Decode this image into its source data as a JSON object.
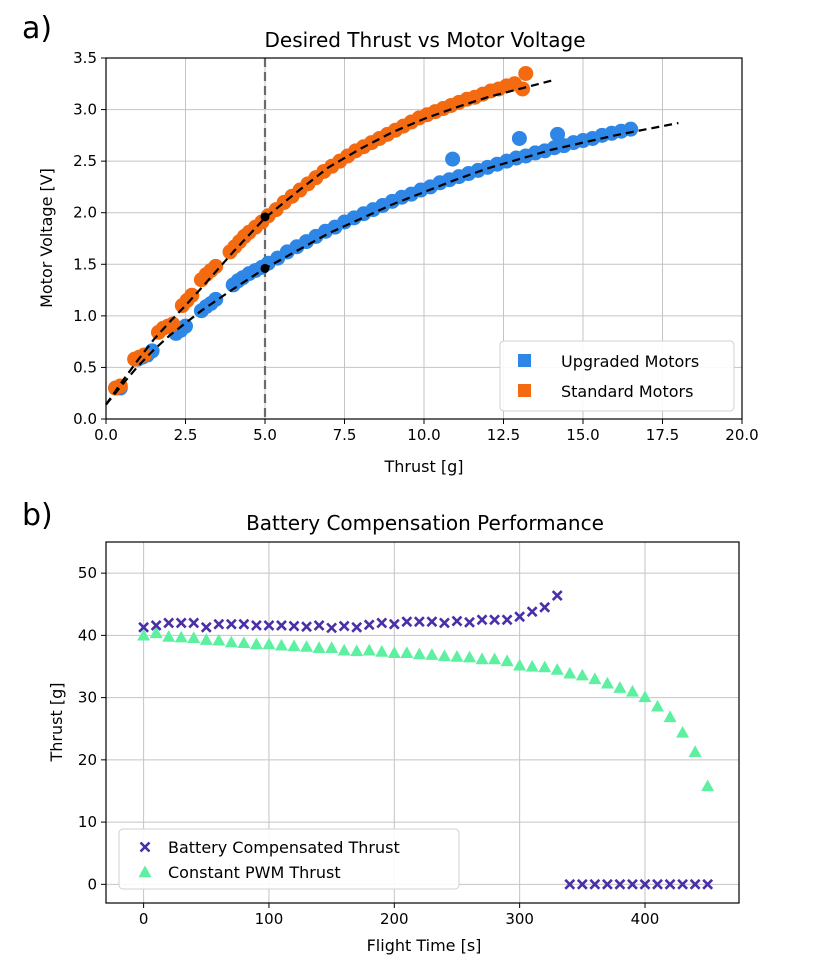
{
  "chart_data": [
    {
      "type": "scatter",
      "panel_label": "a)",
      "title": "Desired Thrust vs Motor Voltage",
      "xlabel": "Thrust [g]",
      "ylabel": "Motor Voltage [V]",
      "xlim": [
        0,
        20
      ],
      "ylim": [
        0,
        3.5
      ],
      "xticks": [
        0,
        2.5,
        5,
        7.5,
        10,
        12.5,
        15,
        17.5,
        20
      ],
      "xtick_labels": [
        "0.0",
        "2.5",
        "5.0",
        "7.5",
        "10.0",
        "12.5",
        "15.0",
        "17.5",
        "20.0"
      ],
      "yticks": [
        0,
        0.5,
        1,
        1.5,
        2,
        2.5,
        3,
        3.5
      ],
      "ytick_labels": [
        "0.0",
        "0.5",
        "1.0",
        "1.5",
        "2.0",
        "2.5",
        "3.0",
        "3.5"
      ],
      "grid": true,
      "legend_position": "lower-right",
      "series": [
        {
          "name": "Upgraded Motors",
          "color": "#2e86e6",
          "marker": "circle",
          "x": [
            0.3,
            0.45,
            1.0,
            1.15,
            1.3,
            1.45,
            2.2,
            2.35,
            2.5,
            3.0,
            3.15,
            3.3,
            3.45,
            4.0,
            4.15,
            4.3,
            4.5,
            4.7,
            4.9,
            5.1,
            5.4,
            5.7,
            6.0,
            6.3,
            6.6,
            6.9,
            7.2,
            7.5,
            7.8,
            8.1,
            8.4,
            8.7,
            9.0,
            9.3,
            9.6,
            9.9,
            10.2,
            10.5,
            10.8,
            11.1,
            11.4,
            11.7,
            12.0,
            12.3,
            12.6,
            12.9,
            13.2,
            13.5,
            13.8,
            14.1,
            14.4,
            14.7,
            15.0,
            15.3,
            15.6,
            15.9,
            16.2,
            16.5,
            10.9,
            13.0,
            14.2
          ],
          "y": [
            0.3,
            0.3,
            0.58,
            0.6,
            0.62,
            0.66,
            0.83,
            0.86,
            0.9,
            1.05,
            1.09,
            1.12,
            1.16,
            1.3,
            1.34,
            1.37,
            1.41,
            1.44,
            1.47,
            1.51,
            1.56,
            1.62,
            1.67,
            1.72,
            1.77,
            1.82,
            1.86,
            1.91,
            1.95,
            1.99,
            2.03,
            2.07,
            2.11,
            2.15,
            2.18,
            2.22,
            2.25,
            2.29,
            2.32,
            2.35,
            2.38,
            2.41,
            2.44,
            2.47,
            2.5,
            2.53,
            2.55,
            2.58,
            2.6,
            2.63,
            2.65,
            2.68,
            2.7,
            2.72,
            2.75,
            2.77,
            2.79,
            2.81,
            2.52,
            2.72,
            2.76
          ]
        },
        {
          "name": "Standard Motors",
          "color": "#f46a10",
          "marker": "circle",
          "x": [
            0.3,
            0.45,
            0.9,
            1.05,
            1.2,
            1.65,
            1.8,
            1.95,
            2.1,
            2.4,
            2.55,
            2.7,
            3.0,
            3.15,
            3.3,
            3.45,
            3.9,
            4.05,
            4.2,
            4.35,
            4.5,
            4.7,
            4.9,
            5.1,
            5.35,
            5.6,
            5.85,
            6.1,
            6.35,
            6.6,
            6.85,
            7.1,
            7.35,
            7.6,
            7.85,
            8.1,
            8.35,
            8.6,
            8.85,
            9.1,
            9.35,
            9.6,
            9.85,
            10.1,
            10.35,
            10.6,
            10.85,
            11.1,
            11.35,
            11.6,
            11.85,
            12.1,
            12.35,
            12.6,
            12.85,
            13.1,
            13.2
          ],
          "y": [
            0.3,
            0.32,
            0.58,
            0.6,
            0.62,
            0.84,
            0.88,
            0.9,
            0.92,
            1.1,
            1.15,
            1.2,
            1.35,
            1.4,
            1.44,
            1.48,
            1.62,
            1.67,
            1.72,
            1.77,
            1.81,
            1.86,
            1.91,
            1.97,
            2.03,
            2.1,
            2.16,
            2.22,
            2.28,
            2.34,
            2.4,
            2.45,
            2.5,
            2.55,
            2.6,
            2.64,
            2.68,
            2.72,
            2.76,
            2.8,
            2.84,
            2.88,
            2.92,
            2.95,
            2.98,
            3.01,
            3.04,
            3.07,
            3.1,
            3.12,
            3.15,
            3.18,
            3.2,
            3.23,
            3.25,
            3.2,
            3.35
          ]
        }
      ],
      "fit_curves": [
        {
          "style": "dashed",
          "color": "#000000",
          "x": [
            0,
            0.5,
            1,
            1.5,
            2,
            2.5,
            3,
            4,
            5,
            6,
            7,
            8,
            9,
            10,
            11,
            12,
            13,
            14,
            15,
            16,
            17,
            18
          ],
          "y": [
            0.14,
            0.33,
            0.51,
            0.67,
            0.81,
            0.93,
            1.05,
            1.26,
            1.46,
            1.63,
            1.8,
            1.94,
            2.08,
            2.2,
            2.32,
            2.43,
            2.52,
            2.61,
            2.68,
            2.75,
            2.81,
            2.87
          ]
        },
        {
          "style": "dashed",
          "color": "#000000",
          "x": [
            0,
            0.5,
            1,
            1.5,
            2,
            2.5,
            3,
            4,
            5,
            6,
            7,
            8,
            9,
            10,
            11,
            12,
            13,
            14
          ],
          "y": [
            0.14,
            0.36,
            0.57,
            0.77,
            0.94,
            1.1,
            1.27,
            1.62,
            1.95,
            2.2,
            2.44,
            2.62,
            2.78,
            2.91,
            3.02,
            3.12,
            3.2,
            3.28
          ]
        }
      ],
      "reference_line": {
        "x": 5,
        "style": "dashed",
        "color": "#6b6b6b"
      },
      "reference_points": [
        {
          "x": 5,
          "y": 1.46
        },
        {
          "x": 5,
          "y": 1.96
        }
      ]
    },
    {
      "type": "scatter",
      "panel_label": "b)",
      "title": "Battery Compensation Performance",
      "xlabel": "Flight Time [s]",
      "ylabel": "Thrust [g]",
      "xlim": [
        -30,
        475
      ],
      "ylim": [
        -3,
        55
      ],
      "xticks": [
        0,
        100,
        200,
        300,
        400
      ],
      "xtick_labels": [
        "0",
        "100",
        "200",
        "300",
        "400"
      ],
      "yticks": [
        0,
        10,
        20,
        30,
        40,
        50
      ],
      "ytick_labels": [
        "0",
        "10",
        "20",
        "30",
        "40",
        "50"
      ],
      "grid": true,
      "legend_position": "lower-left",
      "series": [
        {
          "name": "Battery Compensated  Thrust",
          "color": "#4a2fa8",
          "marker": "x",
          "x": [
            0,
            10,
            20,
            30,
            40,
            50,
            60,
            70,
            80,
            90,
            100,
            110,
            120,
            130,
            140,
            150,
            160,
            170,
            180,
            190,
            200,
            210,
            220,
            230,
            240,
            250,
            260,
            270,
            280,
            290,
            300,
            310,
            320,
            330,
            340,
            350,
            360,
            370,
            380,
            390,
            400,
            410,
            420,
            430,
            440,
            450
          ],
          "y": [
            41.3,
            41.6,
            42.0,
            42.0,
            42.0,
            41.3,
            41.8,
            41.8,
            41.8,
            41.6,
            41.6,
            41.6,
            41.5,
            41.4,
            41.6,
            41.2,
            41.5,
            41.3,
            41.7,
            42.0,
            41.8,
            42.2,
            42.2,
            42.2,
            42.0,
            42.3,
            42.1,
            42.5,
            42.5,
            42.5,
            43.0,
            43.8,
            44.5,
            46.4,
            0,
            0,
            0,
            0,
            0,
            0,
            0,
            0,
            0,
            0,
            0,
            0
          ]
        },
        {
          "name": "Constant PWM Thrust",
          "color": "#5cf0a0",
          "marker": "triangle",
          "x": [
            0,
            10,
            20,
            30,
            40,
            50,
            60,
            70,
            80,
            90,
            100,
            110,
            120,
            130,
            140,
            150,
            160,
            170,
            180,
            190,
            200,
            210,
            220,
            230,
            240,
            250,
            260,
            270,
            280,
            290,
            300,
            310,
            320,
            330,
            340,
            350,
            360,
            370,
            380,
            390,
            400,
            410,
            420,
            430,
            440,
            450
          ],
          "y": [
            40.0,
            40.4,
            39.8,
            39.7,
            39.6,
            39.3,
            39.2,
            38.9,
            38.8,
            38.6,
            38.6,
            38.4,
            38.3,
            38.2,
            38.0,
            38.0,
            37.6,
            37.5,
            37.6,
            37.4,
            37.2,
            37.2,
            37.0,
            36.9,
            36.7,
            36.6,
            36.5,
            36.2,
            36.2,
            35.9,
            35.2,
            35.0,
            34.9,
            34.5,
            33.9,
            33.6,
            33.0,
            32.3,
            31.6,
            31.0,
            30.1,
            28.6,
            26.9,
            24.4,
            21.3,
            15.8
          ]
        }
      ]
    }
  ]
}
